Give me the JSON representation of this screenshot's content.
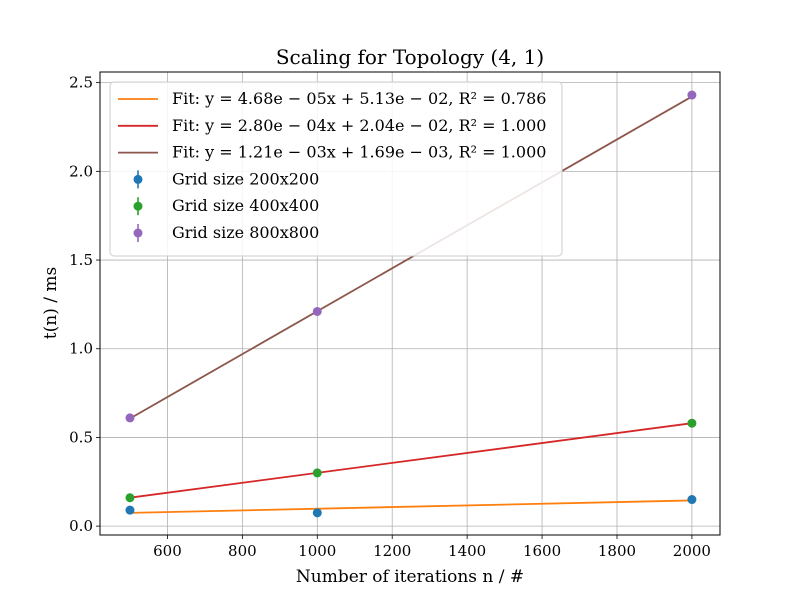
{
  "chart_data": {
    "type": "scatter",
    "title": "Scaling for Topology (4, 1)",
    "xlabel": "Number of iterations n / #",
    "ylabel": "t(n) / ms",
    "xlim": [
      420,
      2075
    ],
    "ylim": [
      -0.05,
      2.56
    ],
    "xticks": [
      600,
      800,
      1000,
      1200,
      1400,
      1600,
      1800,
      2000
    ],
    "yticks": [
      0.0,
      0.5,
      1.0,
      1.5,
      2.0,
      2.5
    ],
    "xtick_labels": [
      "600",
      "800",
      "1000",
      "1200",
      "1400",
      "1600",
      "1800",
      "2000"
    ],
    "ytick_labels": [
      "0.0",
      "0.5",
      "1.0",
      "1.5",
      "2.0",
      "2.5"
    ],
    "grid": true,
    "legend_position": "upper-left",
    "fits": [
      {
        "name": "Fit: y = 4.68e − 05x + 5.13e − 02, R² = 0.786",
        "slope": 4.68e-05,
        "intercept": 0.0513,
        "x_range": [
          500,
          2000
        ],
        "color": "#ff7f0e"
      },
      {
        "name": "Fit: y = 2.80e − 04x + 2.04e − 02, R² = 1.000",
        "slope": 0.00028,
        "intercept": 0.0204,
        "x_range": [
          500,
          2000
        ],
        "color": "#d62728"
      },
      {
        "name": "Fit: y = 1.21e − 03x + 1.69e − 03, R² = 1.000",
        "slope": 0.00121,
        "intercept": 0.00169,
        "x_range": [
          500,
          2000
        ],
        "color": "#8c564b"
      }
    ],
    "series": [
      {
        "name": "Grid size 200x200",
        "x": [
          500,
          1000,
          2000
        ],
        "y": [
          0.09,
          0.075,
          0.15
        ],
        "color": "#1f77b4"
      },
      {
        "name": "Grid size 400x400",
        "x": [
          500,
          1000,
          2000
        ],
        "y": [
          0.16,
          0.3,
          0.58
        ],
        "color": "#2ca02c"
      },
      {
        "name": "Grid size 800x800",
        "x": [
          500,
          1000,
          2000
        ],
        "y": [
          0.61,
          1.21,
          2.43
        ],
        "color": "#9467bd"
      }
    ]
  }
}
